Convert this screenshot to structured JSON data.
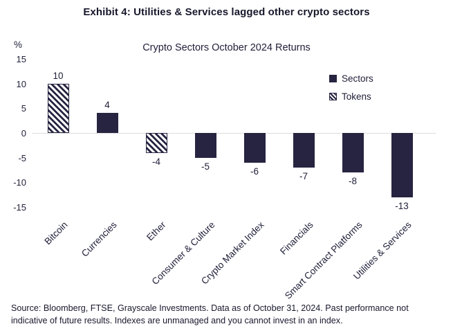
{
  "title": "Exhibit 4: Utilities & Services lagged other crypto sectors",
  "chart_data": {
    "type": "bar",
    "title": "Crypto Sectors October 2024 Returns",
    "xlabel": "",
    "ylabel": "%",
    "ylim": [
      -15,
      15
    ],
    "yticks": [
      15,
      10,
      5,
      0,
      -5,
      -10,
      -15
    ],
    "grid": "zero-line-only",
    "legend_position": "upper-right",
    "categories": [
      "Bitcoin",
      "Currencies",
      "Ether",
      "Consumer & Culture",
      "Crypto Market Index",
      "Financials",
      "Smart Contract Platforms",
      "Utilities & Services"
    ],
    "values": [
      10,
      4,
      -4,
      -5,
      -6,
      -7,
      -8,
      -13
    ],
    "bar_styles": [
      "tokens",
      "sectors",
      "tokens",
      "sectors",
      "sectors",
      "sectors",
      "sectors",
      "sectors"
    ],
    "legend": [
      {
        "label": "Sectors",
        "style": "sectors"
      },
      {
        "label": "Tokens",
        "style": "tokens"
      }
    ],
    "colors": {
      "bar_navy": "#262440",
      "zero_line": "#dcdcdc"
    }
  },
  "source": "Source: Bloomberg, FTSE, Grayscale Investments. Data as of October 31, 2024. Past performance not indicative of future results. Indexes are unmanaged and you cannot invest in an index."
}
